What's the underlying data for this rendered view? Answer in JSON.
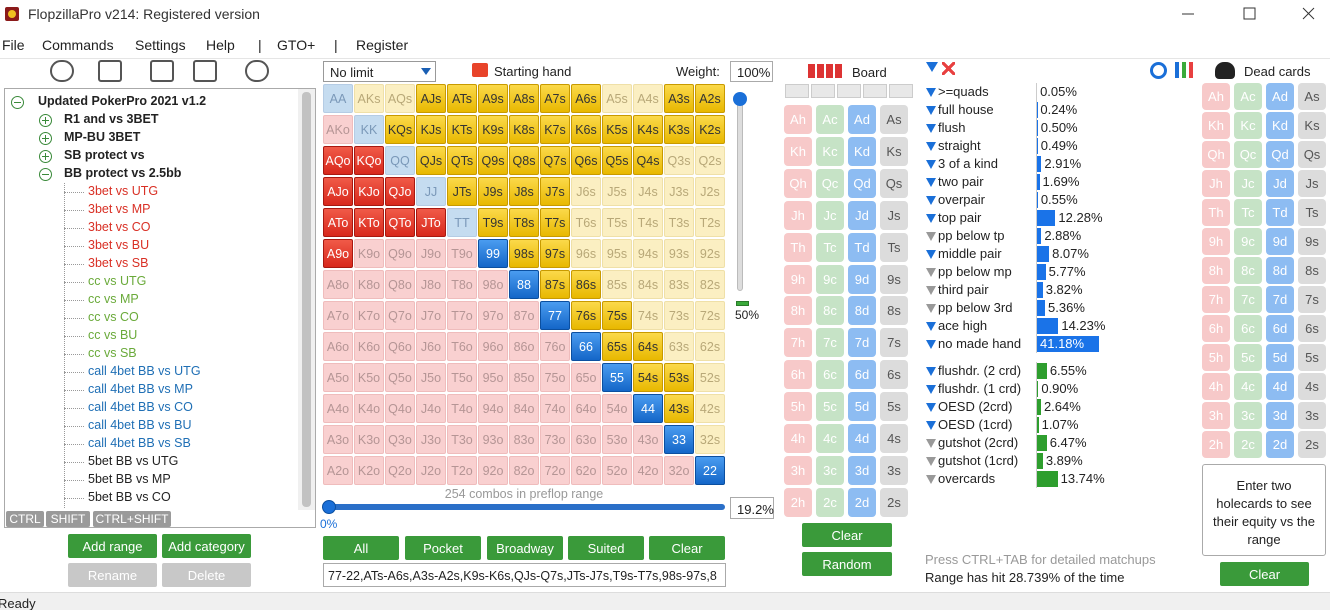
{
  "window": {
    "title": "FlopzillaPro v214: Registered version"
  },
  "menu": [
    "File",
    "Commands",
    "Settings",
    "Help",
    "|",
    "GTO+",
    "|",
    "Register"
  ],
  "tree": {
    "items": [
      {
        "label": "Updated PokerPro 2021 v1.2",
        "level": 0,
        "expanded": true
      },
      {
        "label": "R1 and vs 3BET",
        "level": 1,
        "expanded": false
      },
      {
        "label": "MP-BU 3BET",
        "level": 1,
        "expanded": false
      },
      {
        "label": "SB protect vs",
        "level": 1,
        "expanded": false
      },
      {
        "label": "BB protect vs 2.5bb",
        "level": 1,
        "expanded": true
      },
      {
        "label": "3bet vs UTG",
        "level": 2,
        "color": "#d93025"
      },
      {
        "label": "3bet vs MP",
        "level": 2,
        "color": "#d93025"
      },
      {
        "label": "3bet vs CO",
        "level": 2,
        "color": "#d93025"
      },
      {
        "label": "3bet vs BU",
        "level": 2,
        "color": "#d93025"
      },
      {
        "label": "3bet vs SB",
        "level": 2,
        "color": "#d93025"
      },
      {
        "label": "cc vs UTG",
        "level": 2,
        "color": "#6aaa3a"
      },
      {
        "label": "cc vs MP",
        "level": 2,
        "color": "#6aaa3a"
      },
      {
        "label": "cc vs CO",
        "level": 2,
        "color": "#6aaa3a"
      },
      {
        "label": "cc vs BU",
        "level": 2,
        "color": "#6aaa3a"
      },
      {
        "label": "cc vs SB",
        "level": 2,
        "color": "#6aaa3a"
      },
      {
        "label": "call 4bet BB vs UTG",
        "level": 2,
        "color": "#1f6fb5"
      },
      {
        "label": "call 4bet BB vs MP",
        "level": 2,
        "color": "#1f6fb5"
      },
      {
        "label": "call 4bet BB vs CO",
        "level": 2,
        "color": "#1f6fb5"
      },
      {
        "label": "call 4bet BB vs BU",
        "level": 2,
        "color": "#1f6fb5"
      },
      {
        "label": "call 4bet BB vs SB",
        "level": 2,
        "color": "#1f6fb5"
      },
      {
        "label": "5bet BB vs UTG",
        "level": 2,
        "color": "#222222"
      },
      {
        "label": "5bet BB vs MP",
        "level": 2,
        "color": "#222222"
      },
      {
        "label": "5bet BB vs CO",
        "level": 2,
        "color": "#222222"
      }
    ]
  },
  "tree_tabs": [
    "CTRL",
    "SHIFT",
    "CTRL+SHIFT"
  ],
  "tree_buttons": [
    "Add range",
    "Add category",
    "Rename",
    "Delete"
  ],
  "range_panel": {
    "game": "No limit",
    "starting_hand": "Starting hand",
    "weight_label": "Weight:",
    "weight": "100%",
    "vertical_slider": "50%",
    "combos": "254 combos in preflop range",
    "slider_min": "0%",
    "slider_value": "19.2%",
    "buttons": [
      "All",
      "Pocket",
      "Broadway",
      "Suited",
      "Clear"
    ],
    "range_text": "77-22,ATs-A6s,A3s-A2s,K9s-K6s,QJs-Q7s,JTs-J7s,T9s-T7s,98s-97s,8",
    "grid": {
      "rows": [
        [
          "AA",
          "AKs",
          "AQs",
          "AJs",
          "ATs",
          "A9s",
          "A8s",
          "A7s",
          "A6s",
          "A5s",
          "A4s",
          "A3s",
          "A2s"
        ],
        [
          "AKo",
          "KK",
          "KQs",
          "KJs",
          "KTs",
          "K9s",
          "K8s",
          "K7s",
          "K6s",
          "K5s",
          "K4s",
          "K3s",
          "K2s"
        ],
        [
          "AQo",
          "KQo",
          "QQ",
          "QJs",
          "QTs",
          "Q9s",
          "Q8s",
          "Q7s",
          "Q6s",
          "Q5s",
          "Q4s",
          "Q3s",
          "Q2s"
        ],
        [
          "AJo",
          "KJo",
          "QJo",
          "JJ",
          "JTs",
          "J9s",
          "J8s",
          "J7s",
          "J6s",
          "J5s",
          "J4s",
          "J3s",
          "J2s"
        ],
        [
          "ATo",
          "KTo",
          "QTo",
          "JTo",
          "TT",
          "T9s",
          "T8s",
          "T7s",
          "T6s",
          "T5s",
          "T4s",
          "T3s",
          "T2s"
        ],
        [
          "A9o",
          "K9o",
          "Q9o",
          "J9o",
          "T9o",
          "99",
          "98s",
          "97s",
          "96s",
          "95s",
          "94s",
          "93s",
          "92s"
        ],
        [
          "A8o",
          "K8o",
          "Q8o",
          "J8o",
          "T8o",
          "98o",
          "88",
          "87s",
          "86s",
          "85s",
          "84s",
          "83s",
          "82s"
        ],
        [
          "A7o",
          "K7o",
          "Q7o",
          "J7o",
          "T7o",
          "97o",
          "87o",
          "77",
          "76s",
          "75s",
          "74s",
          "73s",
          "72s"
        ],
        [
          "A6o",
          "K6o",
          "Q6o",
          "J6o",
          "T6o",
          "96o",
          "86o",
          "76o",
          "66",
          "65s",
          "64s",
          "63s",
          "62s"
        ],
        [
          "A5o",
          "K5o",
          "Q5o",
          "J5o",
          "T5o",
          "95o",
          "85o",
          "75o",
          "65o",
          "55",
          "54s",
          "53s",
          "52s"
        ],
        [
          "A4o",
          "K4o",
          "Q4o",
          "J4o",
          "T4o",
          "94o",
          "84o",
          "74o",
          "64o",
          "54o",
          "44",
          "43s",
          "42s"
        ],
        [
          "A3o",
          "K3o",
          "Q3o",
          "J3o",
          "T3o",
          "93o",
          "83o",
          "73o",
          "63o",
          "53o",
          "43o",
          "33",
          "32s"
        ],
        [
          "A2o",
          "K2o",
          "Q2o",
          "J2o",
          "T2o",
          "92o",
          "82o",
          "72o",
          "62o",
          "52o",
          "42o",
          "32o",
          "22"
        ]
      ],
      "selected": [
        [
          false,
          false,
          false,
          true,
          true,
          true,
          true,
          true,
          true,
          false,
          false,
          true,
          true
        ],
        [
          false,
          false,
          true,
          true,
          true,
          true,
          true,
          true,
          true,
          true,
          true,
          true,
          true
        ],
        [
          true,
          true,
          false,
          true,
          true,
          true,
          true,
          true,
          true,
          true,
          true,
          false,
          false
        ],
        [
          true,
          true,
          true,
          false,
          true,
          true,
          true,
          true,
          false,
          false,
          false,
          false,
          false
        ],
        [
          true,
          true,
          true,
          true,
          false,
          true,
          true,
          true,
          false,
          false,
          false,
          false,
          false
        ],
        [
          true,
          false,
          false,
          false,
          false,
          true,
          true,
          true,
          false,
          false,
          false,
          false,
          false
        ],
        [
          false,
          false,
          false,
          false,
          false,
          false,
          true,
          true,
          true,
          false,
          false,
          false,
          false
        ],
        [
          false,
          false,
          false,
          false,
          false,
          false,
          false,
          true,
          true,
          true,
          false,
          false,
          false
        ],
        [
          false,
          false,
          false,
          false,
          false,
          false,
          false,
          false,
          true,
          true,
          true,
          false,
          false
        ],
        [
          false,
          false,
          false,
          false,
          false,
          false,
          false,
          false,
          false,
          true,
          true,
          true,
          false
        ],
        [
          false,
          false,
          false,
          false,
          false,
          false,
          false,
          false,
          false,
          false,
          true,
          true,
          false
        ],
        [
          false,
          false,
          false,
          false,
          false,
          false,
          false,
          false,
          false,
          false,
          false,
          true,
          false
        ],
        [
          false,
          false,
          false,
          false,
          false,
          false,
          false,
          false,
          false,
          false,
          false,
          false,
          true
        ]
      ]
    }
  },
  "board": {
    "label": "Board",
    "cards": [
      "Ah",
      "Ac",
      "Ad",
      "As",
      "Kh",
      "Kc",
      "Kd",
      "Ks",
      "Qh",
      "Qc",
      "Qd",
      "Qs",
      "Jh",
      "Jc",
      "Jd",
      "Js",
      "Th",
      "Tc",
      "Td",
      "Ts",
      "9h",
      "9c",
      "9d",
      "9s",
      "8h",
      "8c",
      "8d",
      "8s",
      "7h",
      "7c",
      "7d",
      "7s",
      "6h",
      "6c",
      "6d",
      "6s",
      "5h",
      "5c",
      "5d",
      "5s",
      "4h",
      "4c",
      "4d",
      "4s",
      "3h",
      "3c",
      "3d",
      "3s",
      "2h",
      "2c",
      "2d",
      "2s"
    ],
    "buttons": [
      "Clear",
      "Random"
    ]
  },
  "stats": {
    "made_hands": {
      "names": [
        ">=quads",
        "full house",
        "flush",
        "straight",
        "3 of a kind",
        "two pair",
        "overpair",
        "top pair",
        "pp below tp",
        "middle pair",
        "pp below mp",
        "third pair",
        "pp below 3rd",
        "ace high",
        "no made hand"
      ],
      "values": [
        0.05,
        0.24,
        0.5,
        0.49,
        2.91,
        1.69,
        0.55,
        12.28,
        2.88,
        8.07,
        5.77,
        3.82,
        5.36,
        14.23,
        41.18
      ],
      "value_labels": [
        "0.05%",
        "0.24%",
        "0.50%",
        "0.49%",
        "2.91%",
        "1.69%",
        "0.55%",
        "12.28%",
        "2.88%",
        "8.07%",
        "5.77%",
        "3.82%",
        "5.36%",
        "14.23%",
        "41.18%"
      ],
      "icon_active": [
        true,
        true,
        true,
        true,
        true,
        true,
        true,
        true,
        false,
        true,
        false,
        false,
        false,
        true,
        true
      ],
      "color": "#1a73e8",
      "selected": 14
    },
    "draws": {
      "names": [
        "flushdr. (2 crd)",
        "flushdr. (1 crd)",
        "OESD (2crd)",
        "OESD (1crd)",
        "gutshot (2crd)",
        "gutshot (1crd)",
        "overcards"
      ],
      "values": [
        6.55,
        0.9,
        2.64,
        1.07,
        6.47,
        3.89,
        13.74
      ],
      "value_labels": [
        "6.55%",
        "0.90%",
        "2.64%",
        "1.07%",
        "6.47%",
        "3.89%",
        "13.74%"
      ],
      "icon_active": [
        true,
        true,
        true,
        true,
        false,
        false,
        false
      ],
      "color": "#2e9e2e"
    },
    "hint": "Press CTRL+TAB for detailed matchups",
    "hit": "Range has hit 28.739% of the time"
  },
  "dead_cards": {
    "label": "Dead cards",
    "cards": [
      "Ah",
      "Ac",
      "Ad",
      "As",
      "Kh",
      "Kc",
      "Kd",
      "Ks",
      "Qh",
      "Qc",
      "Qd",
      "Qs",
      "Jh",
      "Jc",
      "Jd",
      "Js",
      "Th",
      "Tc",
      "Td",
      "Ts",
      "9h",
      "9c",
      "9d",
      "9s",
      "8h",
      "8c",
      "8d",
      "8s",
      "7h",
      "7c",
      "7d",
      "7s",
      "6h",
      "6c",
      "6d",
      "6s",
      "5h",
      "5c",
      "5d",
      "5s",
      "4h",
      "4c",
      "4d",
      "4s",
      "3h",
      "3c",
      "3d",
      "3s",
      "2h",
      "2c",
      "2d",
      "2s"
    ],
    "hint": "Enter two holecards to see their equity vs the range",
    "button": "Clear"
  },
  "status": "Ready"
}
